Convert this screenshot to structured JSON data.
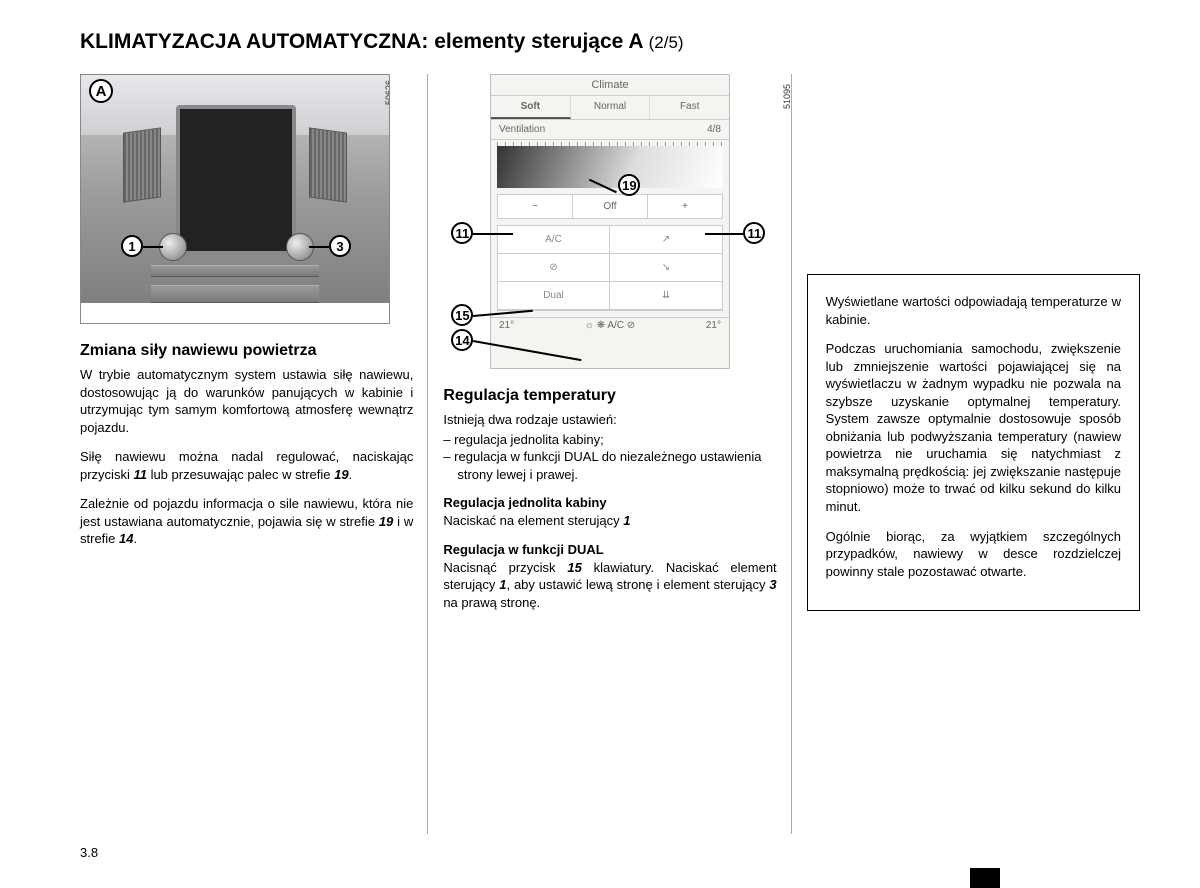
{
  "title_main": "KLIMATYZACJA AUTOMATYCZNA: elementy sterujące A ",
  "title_suffix": "(2/5)",
  "page_number": "3.8",
  "figA": {
    "label": "A",
    "ref": "50626",
    "callouts": {
      "c1": "1",
      "c3": "3"
    }
  },
  "figB": {
    "ref": "51095",
    "header": "Climate",
    "tabs": [
      "Soft",
      "Normal",
      "Fast"
    ],
    "vent_label": "Ventilation",
    "vent_val": "4/8",
    "minus": "−",
    "off": "Off",
    "plus": "+",
    "grid": [
      "A/C",
      "↗",
      "⊘",
      "↘",
      "Dual",
      "⇊"
    ],
    "status_l": "21°",
    "status_r": "21°",
    "status_mid": "☼   ❋   A/C   ⊘",
    "callouts": {
      "c19": "19",
      "c11": "11",
      "c15": "15",
      "c14": "14"
    }
  },
  "col1": {
    "h2": "Zmiana siły nawiewu powietrza",
    "p1": "W trybie automatycznym system ustawia siłę nawiewu, dostosowując ją do warunków panujących w kabinie i utrzymując tym samym komfortową atmosferę wewnątrz pojazdu.",
    "p2_a": "Siłę nawiewu można nadal regulować, naciskając przyciski ",
    "p2_b": "11",
    "p2_c": " lub przesuwając palec w strefie ",
    "p2_d": "19",
    "p2_e": ".",
    "p3_a": "Zależnie od pojazdu informacja o sile nawiewu, która nie jest ustawiana automatycznie, pojawia się w strefie ",
    "p3_b": "19",
    "p3_c": " i w strefie ",
    "p3_d": "14",
    "p3_e": "."
  },
  "col2": {
    "h2": "Regulacja temperatury",
    "intro": "Istnieją dwa rodzaje ustawień:",
    "li1": "regulacja jednolita kabiny;",
    "li2": "regulacja w funkcji DUAL do niezależnego ustawienia strony lewej i prawej.",
    "sub1": "Regulacja jednolita kabiny",
    "sub1_p_a": "Naciskać na element sterujący ",
    "sub1_p_b": "1",
    "sub2": "Regulacja w funkcji DUAL",
    "sub2_p_a": "Nacisnąć przycisk ",
    "sub2_p_b": "15",
    "sub2_p_c": " klawiatury. Naciskać element sterujący ",
    "sub2_p_d": "1",
    "sub2_p_e": ", aby ustawić lewą stronę i element sterujący ",
    "sub2_p_f": "3",
    "sub2_p_g": " na prawą stronę."
  },
  "col3": {
    "p1": "Wyświetlane wartości odpowiadają temperaturze w kabinie.",
    "p2": "Podczas uruchomiania samochodu, zwiększenie lub zmniejszenie wartości pojawiającej się na wyświetlaczu w żadnym wypadku nie pozwala na szybsze uzyskanie optymalnej temperatury. System zawsze optymalnie dostosowuje sposób obniżania lub podwyższania temperatury (nawiew powietrza nie uruchamia się natychmiast z maksymalną prędkością: jej zwiększanie następuje stopniowo) może to trwać od kilku sekund do kilku minut.",
    "p3": "Ogólnie biorąc, za wyjątkiem szczególnych przypadków, nawiewy w desce rozdzielczej powinny stale pozostawać otwarte."
  }
}
